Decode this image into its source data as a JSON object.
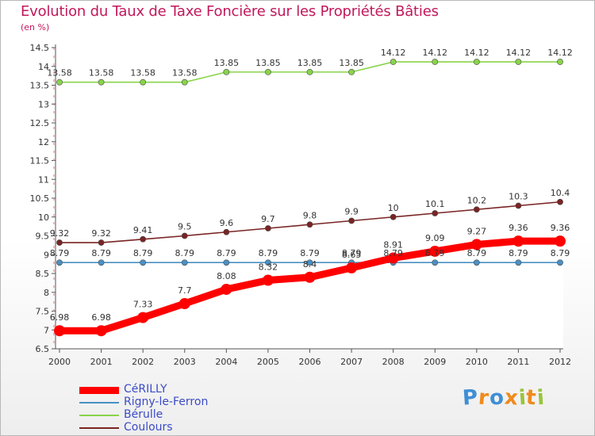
{
  "title": "Evolution du Taux de Taxe Foncière sur les Propriétés Bâties",
  "unit": "(en %)",
  "chart_data": {
    "type": "line",
    "title": "Evolution du Taux de Taxe Foncière sur les Propriétés Bâties",
    "ylabel": "(en %)",
    "xlabel": "",
    "ylim": [
      6.5,
      14.5
    ],
    "yticks": [
      "6.5",
      "7",
      "7.5",
      "8",
      "8.5",
      "9",
      "9.5",
      "10",
      "10.5",
      "11",
      "11.5",
      "12",
      "12.5",
      "13",
      "13.5",
      "14",
      "14.5"
    ],
    "x": [
      "2000",
      "2001",
      "2002",
      "2003",
      "2004",
      "2005",
      "2006",
      "2007",
      "2008",
      "2009",
      "2010",
      "2011",
      "2012"
    ],
    "series": [
      {
        "name": "CéRILLY",
        "color": "#ff0000",
        "values": [
          6.98,
          6.98,
          7.33,
          7.7,
          8.08,
          8.32,
          8.4,
          8.65,
          8.91,
          9.09,
          9.27,
          9.36,
          9.36
        ],
        "labels": [
          "6.98",
          "6.98",
          "7.33",
          "7.7",
          "8.08",
          "8.32",
          "8.4",
          "8.65",
          "8.91",
          "9.09",
          "9.27",
          "9.36",
          "9.36"
        ]
      },
      {
        "name": "Rigny-le-Ferron",
        "color": "#4a90c4",
        "values": [
          8.79,
          8.79,
          8.79,
          8.79,
          8.79,
          8.79,
          8.79,
          8.79,
          8.79,
          8.79,
          8.79,
          8.79,
          8.79
        ],
        "labels": [
          "8.79",
          "8.79",
          "8.79",
          "8.79",
          "8.79",
          "8.79",
          "8.79",
          "8.79",
          "8.79",
          "8.79",
          "8.79",
          "8.79",
          "8.79"
        ]
      },
      {
        "name": "Bérulle",
        "color": "#88d44a",
        "values": [
          13.58,
          13.58,
          13.58,
          13.58,
          13.85,
          13.85,
          13.85,
          13.85,
          14.12,
          14.12,
          14.12,
          14.12,
          14.12
        ],
        "labels": [
          "13.58",
          "13.58",
          "13.58",
          "13.58",
          "13.85",
          "13.85",
          "13.85",
          "13.85",
          "14.12",
          "14.12",
          "14.12",
          "14.12",
          "14.12"
        ]
      },
      {
        "name": "Coulours",
        "color": "#7a2424",
        "values": [
          9.32,
          9.32,
          9.41,
          9.5,
          9.6,
          9.7,
          9.8,
          9.9,
          10,
          10.1,
          10.2,
          10.3,
          10.4
        ],
        "labels": [
          "9.32",
          "9.32",
          "9.41",
          "9.5",
          "9.6",
          "9.7",
          "9.8",
          "9.9",
          "10",
          "10.1",
          "10.2",
          "10.3",
          "10.4"
        ]
      }
    ],
    "legend": "bottom-left"
  },
  "logo": {
    "text": "Proxiti",
    "colors": [
      "#3f8fd6",
      "#f08a1c",
      "#3f8fd6",
      "#f08a1c",
      "#9ac43a",
      "#f08a1c",
      "#9ac43a"
    ]
  }
}
